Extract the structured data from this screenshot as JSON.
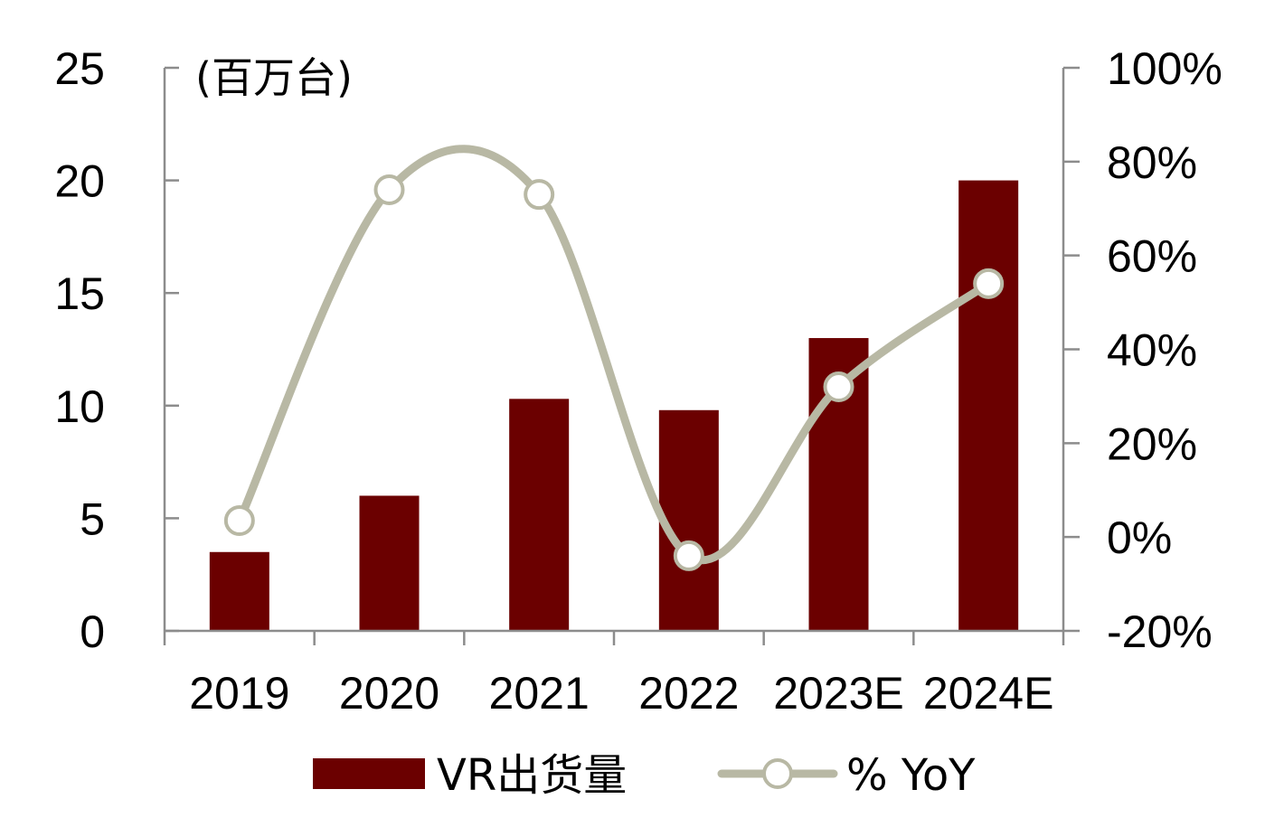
{
  "chart_data": {
    "type": "bar",
    "categories": [
      "2019",
      "2020",
      "2021",
      "2022",
      "2023E",
      "2024E"
    ],
    "left_axis": {
      "unit_label": "(百万台)",
      "ticks": [
        "0",
        "5",
        "10",
        "15",
        "20",
        "25"
      ],
      "range": [
        0,
        25
      ]
    },
    "right_axis": {
      "ticks": [
        "-20%",
        "0%",
        "20%",
        "40%",
        "60%",
        "80%",
        "100%"
      ],
      "range": [
        -20,
        100
      ]
    },
    "series": [
      {
        "name": "VR出货量",
        "type": "bar",
        "axis": "left",
        "color": "#6b0000",
        "values": [
          3.5,
          6.0,
          10.3,
          9.8,
          13.0,
          20.0
        ]
      },
      {
        "name": "% YoY",
        "type": "line",
        "axis": "right",
        "color": "#b8b8a4",
        "smooth": true,
        "values": [
          3.5,
          74,
          73,
          -4,
          32,
          54
        ]
      }
    ],
    "grid": false,
    "legend": "bottom"
  }
}
